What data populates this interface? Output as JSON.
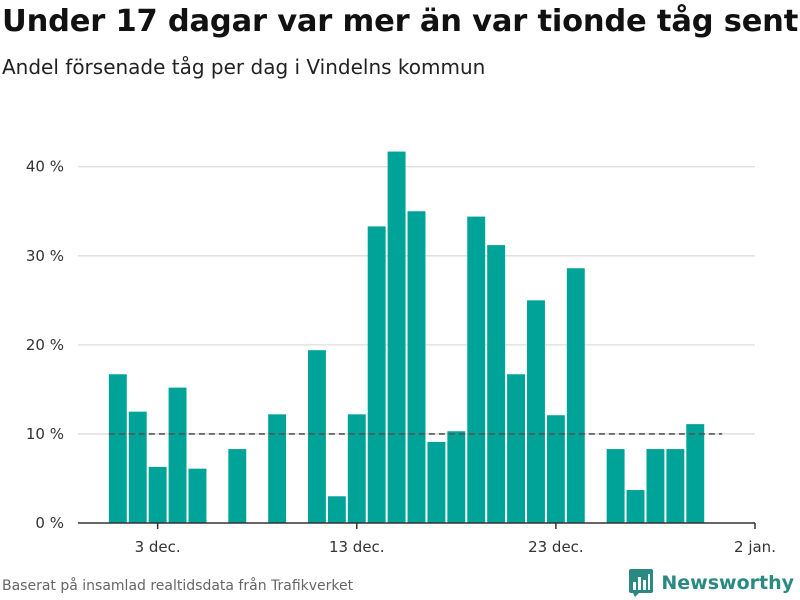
{
  "title": "Under 17 dagar var mer än var tionde tåg sent",
  "subtitle": "Andel försenade tåg per dag i Vindelns kommun",
  "footer": {
    "source": "Baserat på insamlad realtidsdata från Trafikverket",
    "brand": "Newsworthy",
    "logo_icon": "bar-chart-logo-icon"
  },
  "colors": {
    "bar": "#00a398",
    "reference_line": "#555555",
    "grid": "#dddddd",
    "brand": "#2a8a82"
  },
  "chart_data": {
    "type": "bar",
    "x_type": "date",
    "dates": [
      "2018-12-01",
      "2018-12-02",
      "2018-12-03",
      "2018-12-04",
      "2018-12-05",
      "2018-12-06",
      "2018-12-07",
      "2018-12-08",
      "2018-12-09",
      "2018-12-10",
      "2018-12-11",
      "2018-12-12",
      "2018-12-13",
      "2018-12-14",
      "2018-12-15",
      "2018-12-16",
      "2018-12-17",
      "2018-12-18",
      "2018-12-19",
      "2018-12-20",
      "2018-12-21",
      "2018-12-22",
      "2018-12-23",
      "2018-12-24",
      "2018-12-25",
      "2018-12-26",
      "2018-12-27",
      "2018-12-28",
      "2018-12-29",
      "2018-12-30"
    ],
    "values": [
      16.7,
      12.5,
      6.3,
      15.2,
      6.1,
      null,
      8.3,
      null,
      12.2,
      null,
      19.4,
      3.0,
      12.2,
      33.3,
      41.7,
      35.0,
      9.1,
      10.3,
      34.4,
      31.2,
      16.7,
      25.0,
      12.1,
      28.6,
      null,
      8.3,
      3.7,
      8.3,
      8.3,
      11.1
    ],
    "reference_line": 10,
    "xticks": [
      {
        "date": "2018-12-03",
        "label": "3 dec."
      },
      {
        "date": "2018-12-13",
        "label": "13 dec."
      },
      {
        "date": "2018-12-23",
        "label": "23 dec."
      },
      {
        "date": "2019-01-02",
        "label": "2 jan."
      }
    ],
    "xlim": [
      "2018-11-29",
      "2019-01-02"
    ],
    "yticks": [
      {
        "value": 0,
        "label": "0 %"
      },
      {
        "value": 10,
        "label": "10 %"
      },
      {
        "value": 20,
        "label": "20 %"
      },
      {
        "value": 30,
        "label": "30 %"
      },
      {
        "value": 40,
        "label": "40 %"
      }
    ],
    "ylim": [
      0,
      43
    ],
    "grid": true,
    "legend": "none"
  }
}
